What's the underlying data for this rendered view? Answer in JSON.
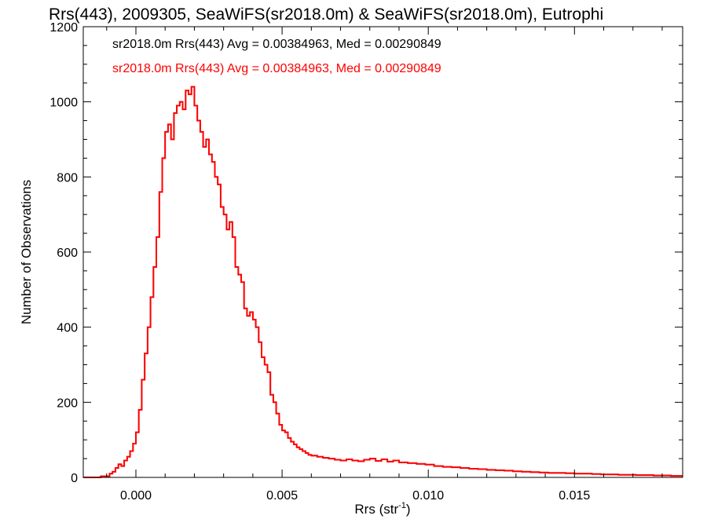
{
  "chart_data": {
    "type": "line",
    "title": "Rrs(443), 2009305, SeaWiFS(sr2018.0m) & SeaWiFS(sr2018.0m), Eutrophi",
    "xlabel": "Rrs (str",
    "xlabel_sup": "-1",
    "xlabel_close": ")",
    "ylabel": "Number of Observations",
    "xlim": [
      -0.0018,
      0.0187
    ],
    "ylim": [
      0,
      1200
    ],
    "xticks": [
      0.0,
      0.005,
      0.01,
      0.015
    ],
    "xtick_labels": [
      "0.000",
      "0.005",
      "0.010",
      "0.015"
    ],
    "yticks": [
      0,
      200,
      400,
      600,
      800,
      1000,
      1200
    ],
    "ytick_labels": [
      "0",
      "200",
      "400",
      "600",
      "800",
      "1000",
      "1200"
    ],
    "grid": false,
    "legend_position": "top-left",
    "step": "histogram",
    "x": [
      -0.0018,
      -0.0015,
      -0.0012,
      -0.0009,
      -0.0008,
      -0.0007,
      -0.0006,
      -0.0005,
      -0.0004,
      -0.0003,
      -0.0002,
      -0.0001,
      0.0,
      0.0001,
      0.0002,
      0.0003,
      0.0004,
      0.0005,
      0.0006,
      0.0007,
      0.0008,
      0.0009,
      0.001,
      0.0011,
      0.0012,
      0.0013,
      0.0014,
      0.0015,
      0.0016,
      0.0017,
      0.0018,
      0.0019,
      0.002,
      0.0021,
      0.0022,
      0.0023,
      0.0024,
      0.0025,
      0.0026,
      0.0027,
      0.0028,
      0.0029,
      0.003,
      0.0031,
      0.0032,
      0.0033,
      0.0034,
      0.0035,
      0.0036,
      0.0037,
      0.0038,
      0.0039,
      0.004,
      0.0041,
      0.0042,
      0.0043,
      0.0044,
      0.0045,
      0.0046,
      0.0047,
      0.0048,
      0.0049,
      0.005,
      0.0051,
      0.0052,
      0.0053,
      0.0054,
      0.0055,
      0.0056,
      0.0057,
      0.0058,
      0.0059,
      0.006,
      0.0062,
      0.0064,
      0.0066,
      0.0068,
      0.007,
      0.0072,
      0.0074,
      0.0076,
      0.0078,
      0.008,
      0.0082,
      0.0084,
      0.0086,
      0.0088,
      0.009,
      0.0093,
      0.0096,
      0.0099,
      0.0102,
      0.0105,
      0.0108,
      0.0111,
      0.0114,
      0.0117,
      0.012,
      0.0123,
      0.0126,
      0.0129,
      0.0132,
      0.0135,
      0.0138,
      0.0141,
      0.0144,
      0.0147,
      0.015,
      0.0153,
      0.0156,
      0.0159,
      0.0162,
      0.0165,
      0.0168,
      0.0171,
      0.0174,
      0.0177,
      0.018,
      0.0183,
      0.0186
    ],
    "series": [
      {
        "name": "sr2018.0m Rrs(443) Avg = 0.00384963, Med = 0.00290849",
        "color": "#000000",
        "values": [
          0,
          0,
          3,
          10,
          15,
          25,
          35,
          30,
          45,
          55,
          70,
          90,
          120,
          180,
          260,
          330,
          400,
          480,
          560,
          640,
          760,
          850,
          920,
          940,
          900,
          970,
          990,
          1000,
          980,
          1030,
          1020,
          1040,
          990,
          950,
          920,
          880,
          900,
          860,
          840,
          800,
          780,
          720,
          700,
          660,
          680,
          640,
          560,
          540,
          520,
          450,
          430,
          440,
          420,
          400,
          360,
          320,
          300,
          280,
          220,
          200,
          170,
          140,
          125,
          120,
          105,
          95,
          88,
          80,
          75,
          70,
          65,
          60,
          58,
          55,
          52,
          50,
          47,
          45,
          48,
          45,
          43,
          47,
          50,
          44,
          48,
          42,
          45,
          40,
          38,
          36,
          34,
          30,
          28,
          27,
          25,
          23,
          22,
          20,
          19,
          18,
          16,
          15,
          14,
          13,
          12,
          12,
          11,
          10,
          10,
          9,
          8,
          8,
          7,
          7,
          6,
          6,
          5,
          5,
          4,
          4
        ]
      },
      {
        "name": "sr2018.0m Rrs(443) Avg = 0.00384963, Med = 0.00290849",
        "color": "#ff0000",
        "values": [
          0,
          0,
          3,
          10,
          15,
          25,
          35,
          30,
          45,
          55,
          70,
          90,
          120,
          180,
          260,
          330,
          400,
          480,
          560,
          640,
          760,
          850,
          920,
          940,
          900,
          970,
          990,
          1000,
          980,
          1030,
          1020,
          1040,
          990,
          950,
          920,
          880,
          900,
          860,
          840,
          800,
          780,
          720,
          700,
          660,
          680,
          640,
          560,
          540,
          520,
          450,
          430,
          440,
          420,
          400,
          360,
          320,
          300,
          280,
          220,
          200,
          170,
          140,
          125,
          120,
          105,
          95,
          88,
          80,
          75,
          70,
          65,
          60,
          58,
          55,
          52,
          50,
          47,
          45,
          48,
          45,
          43,
          47,
          50,
          44,
          48,
          42,
          45,
          40,
          38,
          36,
          34,
          30,
          28,
          27,
          25,
          23,
          22,
          20,
          19,
          18,
          16,
          15,
          14,
          13,
          12,
          12,
          11,
          10,
          10,
          9,
          8,
          8,
          7,
          7,
          6,
          6,
          5,
          5,
          4,
          4
        ]
      }
    ]
  }
}
